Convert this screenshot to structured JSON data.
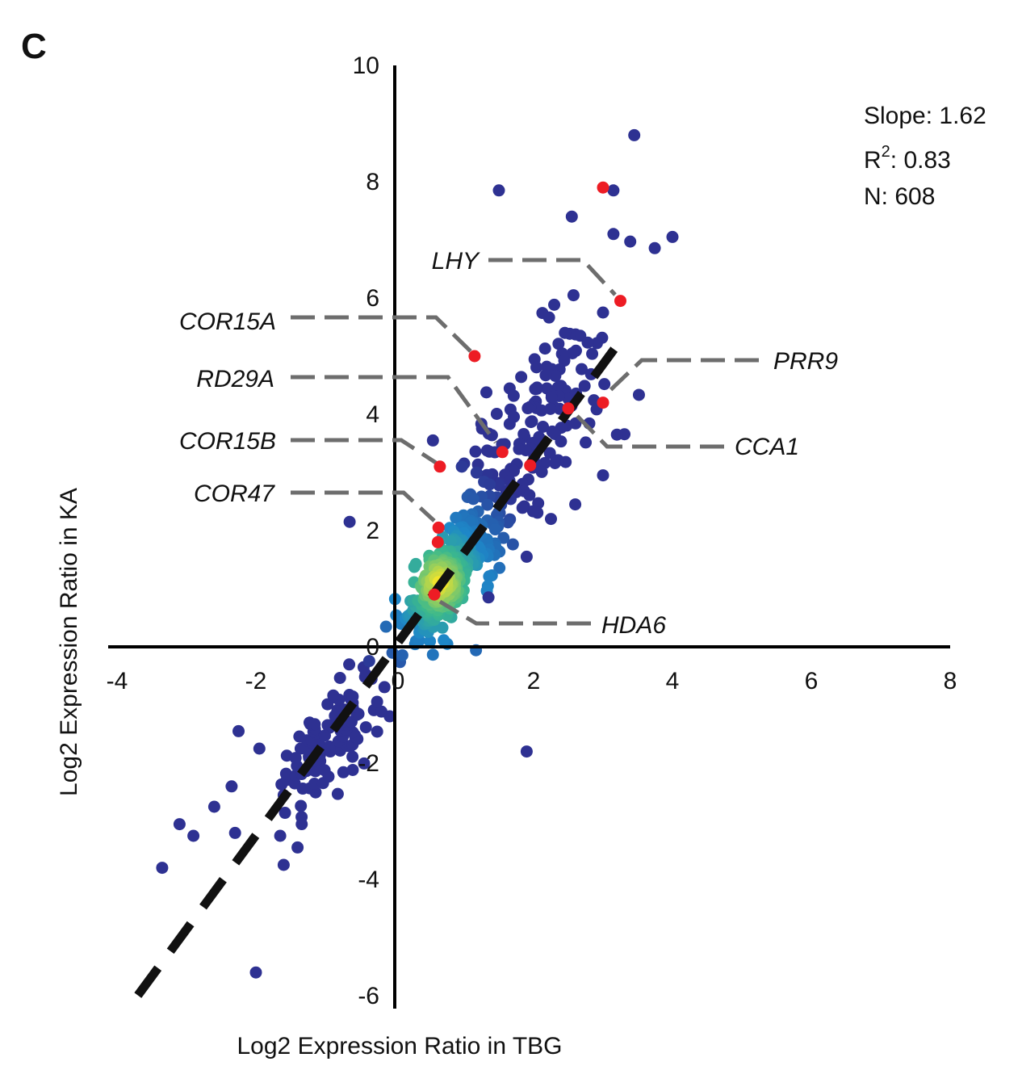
{
  "panel_label": "C",
  "stats": {
    "slope": "Slope: 1.62",
    "r2_prefix": "R",
    "r2_sup": "2",
    "r2_suffix": ": 0.83",
    "n": "N: 608"
  },
  "colors": {
    "low_density": "#2e3192",
    "mid_density": "#1e88c8",
    "high_density": "#fde725",
    "highlight": "#ed1c24",
    "fit_line": "#111111",
    "leader": "#6d6d6d"
  },
  "chart_data": {
    "type": "scatter",
    "xlabel": "Log2 Expression Ratio in TBG",
    "ylabel": "Log2 Expression Ratio in KA",
    "xlim": [
      -4,
      8
    ],
    "ylim": [
      -6.3,
      10
    ],
    "x_ticks": [
      "-4",
      "-2",
      "0",
      "2",
      "4",
      "6",
      "8"
    ],
    "y_ticks": [
      "-6",
      "-4",
      "-2",
      "0",
      "2",
      "4",
      "6",
      "8",
      "10"
    ],
    "grid": false,
    "fit_line": {
      "slope": 1.62,
      "intercept": 0,
      "style": "dashed",
      "x_range": [
        -3.7,
        3.0
      ]
    },
    "highlighted_genes": [
      {
        "label": "LHY",
        "x": 3.25,
        "y": 5.95
      },
      {
        "label": "COR15A",
        "x": 1.15,
        "y": 5.0
      },
      {
        "label": "RD29A",
        "x": 1.55,
        "y": 3.35
      },
      {
        "label": "PRR9",
        "x": 3.0,
        "y": 4.2
      },
      {
        "label": "CCA1",
        "x": 2.5,
        "y": 4.1
      },
      {
        "label": "COR15B",
        "x": 0.65,
        "y": 3.1
      },
      {
        "label": "COR47",
        "x": 0.63,
        "y": 2.05
      },
      {
        "label": "HDA6",
        "x": 0.57,
        "y": 0.9
      }
    ],
    "extra_highlight_points": [
      {
        "x": 3.0,
        "y": 7.9
      },
      {
        "x": 1.95,
        "y": 3.12
      },
      {
        "x": 0.62,
        "y": 1.8
      }
    ],
    "outlier_points": [
      {
        "x": 3.45,
        "y": 8.8
      },
      {
        "x": 1.5,
        "y": 7.85
      },
      {
        "x": 3.15,
        "y": 7.85
      },
      {
        "x": 2.55,
        "y": 7.4
      },
      {
        "x": 3.15,
        "y": 7.1
      },
      {
        "x": 4.0,
        "y": 7.05
      },
      {
        "x": -0.65,
        "y": 2.15
      },
      {
        "x": 0.55,
        "y": 3.55
      },
      {
        "x": 1.9,
        "y": -1.8
      },
      {
        "x": -2.0,
        "y": -5.6
      },
      {
        "x": -3.35,
        "y": -3.8
      },
      {
        "x": -3.1,
        "y": -3.05
      },
      {
        "x": -2.9,
        "y": -3.25
      },
      {
        "x": -2.6,
        "y": -2.75
      },
      {
        "x": -2.35,
        "y": -2.4
      },
      {
        "x": -2.25,
        "y": -1.45
      },
      {
        "x": -1.95,
        "y": -1.75
      },
      {
        "x": -1.6,
        "y": -2.55
      },
      {
        "x": -1.65,
        "y": -3.25
      },
      {
        "x": -1.6,
        "y": -3.75
      },
      {
        "x": -1.4,
        "y": -3.45
      },
      {
        "x": -2.3,
        "y": -3.2
      },
      {
        "x": 2.45,
        "y": 5.4
      },
      {
        "x": 3.0,
        "y": 5.75
      },
      {
        "x": 3.0,
        "y": 2.95
      },
      {
        "x": 2.6,
        "y": 2.45
      },
      {
        "x": 1.9,
        "y": 1.55
      },
      {
        "x": 1.35,
        "y": 0.85
      },
      {
        "x": 3.2,
        "y": 3.65
      },
      {
        "x": 2.25,
        "y": 2.2
      }
    ]
  }
}
